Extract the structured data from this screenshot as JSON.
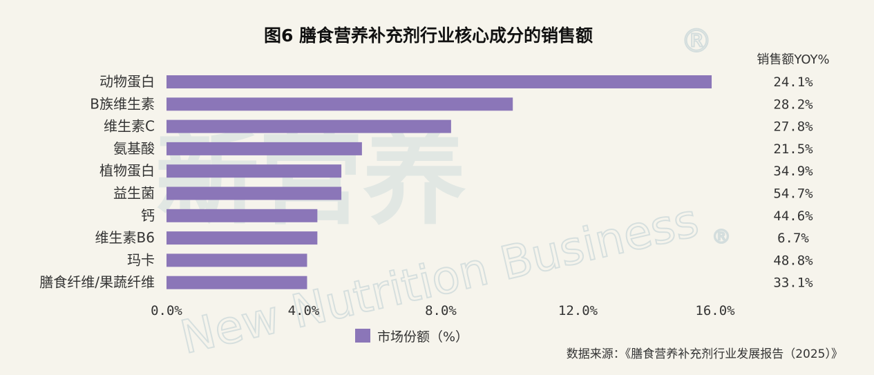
{
  "watermark": {
    "chinese": "新营养",
    "english": "New Nutrition Business",
    "registered_mark": "®"
  },
  "chart_data": {
    "type": "bar",
    "orientation": "horizontal",
    "title": "图6 膳食营养补充剂行业核心成分的销售额",
    "categories": [
      "动物蛋白",
      "B族维生素",
      "维生素C",
      "氨基酸",
      "植物蛋白",
      "益生菌",
      "钙",
      "维生素B6",
      "玛卡",
      "膳食纤维/果蔬纤维"
    ],
    "series": [
      {
        "name": "市场份额（%）",
        "values": [
          15.9,
          10.1,
          8.3,
          5.7,
          5.1,
          5.1,
          4.4,
          4.4,
          4.1,
          4.1
        ]
      }
    ],
    "yoy_header": "销售额YOY%",
    "yoy": [
      "24.1%",
      "28.2%",
      "27.8%",
      "21.5%",
      "34.9%",
      "54.7%",
      "44.6%",
      "6.7%",
      "48.8%",
      "33.1%"
    ],
    "xlim": [
      0,
      16
    ],
    "xticks": [
      "0.0%",
      "4.0%",
      "8.0%",
      "12.0%",
      "16.0%"
    ],
    "legend_position": "bottom-center",
    "grid": false,
    "bar_color": "#8b76b8"
  },
  "source": "数据来源：《膳食营养补充剂行业发展报告（2025）》"
}
